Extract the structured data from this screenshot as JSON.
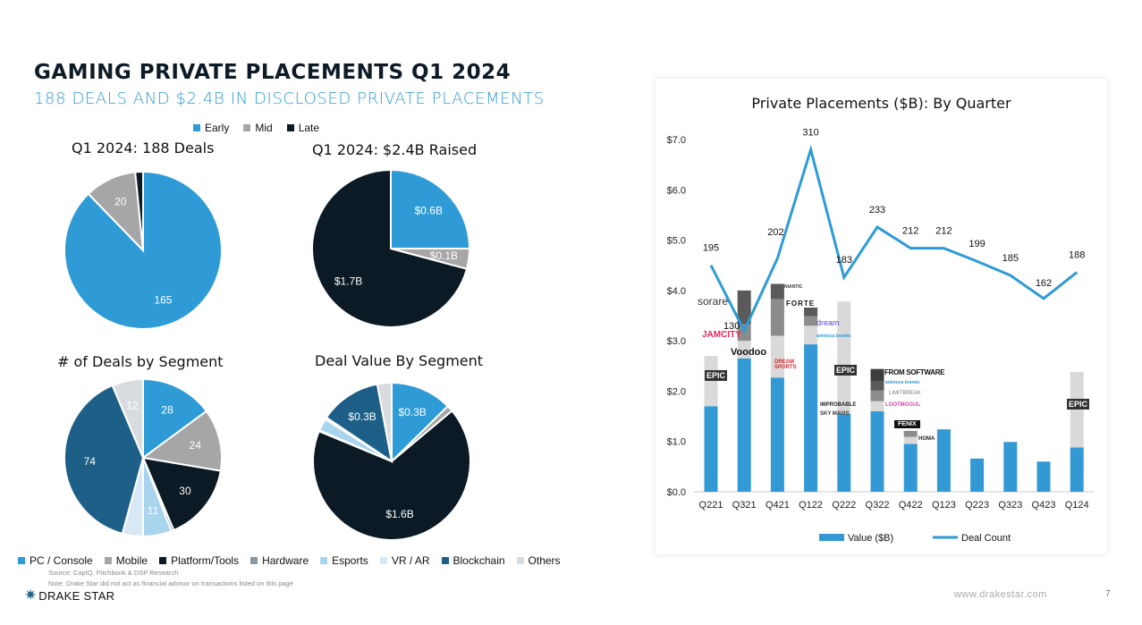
{
  "header": {
    "title": "GAMING PRIVATE PLACEMENTS Q1 2024",
    "subtitle": "188 DEALS AND $2.4B IN DISCLOSED PRIVATE PLACEMENTS"
  },
  "stage_legend": [
    {
      "label": "Early",
      "color": "#2e9bd6"
    },
    {
      "label": "Mid",
      "color": "#a6a6a6"
    },
    {
      "label": "Late",
      "color": "#0b1a24"
    }
  ],
  "segment_legend": [
    {
      "label": "PC / Console",
      "color": "#2e9bd6"
    },
    {
      "label": "Mobile",
      "color": "#a6a6a6"
    },
    {
      "label": "Platform/Tools",
      "color": "#0b1a24"
    },
    {
      "label": "Hardware",
      "color": "#8c95a0"
    },
    {
      "label": "Esports",
      "color": "#a9d4ee"
    },
    {
      "label": "VR / AR",
      "color": "#d8e9f5"
    },
    {
      "label": "Blockchain",
      "color": "#1d5f86"
    },
    {
      "label": "Others",
      "color": "#d9dcdf"
    }
  ],
  "chart_data": [
    {
      "type": "pie",
      "title": "Q1 2024: 188 Deals",
      "categories": [
        "Early",
        "Mid",
        "Late"
      ],
      "values": [
        165,
        20,
        3
      ],
      "labels": [
        "165",
        "20",
        null
      ],
      "colors": [
        "#2e9bd6",
        "#a6a6a6",
        "#0b1a24"
      ]
    },
    {
      "type": "pie",
      "title": "Q1 2024: $2.4B Raised",
      "categories": [
        "Early",
        "Mid",
        "Late"
      ],
      "values": [
        0.6,
        0.1,
        1.7
      ],
      "labels": [
        "$0.6B",
        "$0.1B",
        "$1.7B"
      ],
      "colors": [
        "#2e9bd6",
        "#a6a6a6",
        "#0b1a24"
      ]
    },
    {
      "type": "pie",
      "title": "# of Deals by Segment",
      "categories": [
        "PC / Console",
        "Mobile",
        "Platform/Tools",
        "Hardware",
        "Esports",
        "VR / AR",
        "Blockchain",
        "Others"
      ],
      "values": [
        28,
        24,
        30,
        1,
        11,
        8,
        74,
        12
      ],
      "labels": [
        "28",
        "24",
        "30",
        null,
        "11",
        null,
        "74",
        "12"
      ],
      "colors": [
        "#2e9bd6",
        "#a6a6a6",
        "#0b1a24",
        "#8c95a0",
        "#a9d4ee",
        "#d8e9f5",
        "#1d5f86",
        "#d9dcdf"
      ]
    },
    {
      "type": "pie",
      "title": "Deal Value By Segment",
      "categories": [
        "PC / Console",
        "Mobile",
        "Platform/Tools",
        "Hardware",
        "Esports",
        "VR / AR",
        "Blockchain",
        "Others"
      ],
      "values": [
        0.3,
        0.03,
        1.6,
        0.005,
        0.06,
        0.01,
        0.3,
        0.07
      ],
      "labels": [
        "$0.3B",
        null,
        "$1.6B",
        null,
        null,
        null,
        "$0.3B",
        null
      ],
      "colors": [
        "#2e9bd6",
        "#a6a6a6",
        "#0b1a24",
        "#8c95a0",
        "#a9d4ee",
        "#e9b6d6",
        "#1d5f86",
        "#d9dcdf"
      ]
    },
    {
      "type": "bar",
      "title": "Private Placements ($B): By Quarter",
      "categories": [
        "Q221",
        "Q321",
        "Q421",
        "Q122",
        "Q222",
        "Q322",
        "Q422",
        "Q123",
        "Q223",
        "Q323",
        "Q423",
        "Q124"
      ],
      "stacked_values": [
        [
          1.7,
          1.0
        ],
        [
          2.65,
          0.35,
          0.33,
          0.67
        ],
        [
          2.27,
          0.83,
          0.73,
          0.3
        ],
        [
          2.93,
          0.37,
          0.19,
          0.17
        ],
        [
          1.55,
          2.23
        ],
        [
          1.6,
          0.2,
          0.21,
          0.18,
          0.25
        ],
        [
          0.95,
          0.14,
          0.12
        ],
        [
          1.24
        ],
        [
          0.66
        ],
        [
          0.99
        ],
        [
          0.6
        ],
        [
          0.88,
          1.5
        ]
      ],
      "stack_colors": [
        "#3399d4",
        "#d9d9d9",
        "#8c8c8c",
        "#5a5a5a",
        "#3d3d3d"
      ],
      "line": {
        "name": "Deal Count",
        "values": [
          195,
          130,
          202,
          310,
          183,
          233,
          212,
          212,
          199,
          185,
          162,
          188
        ],
        "color": "#2e9bd6"
      },
      "bar_series_name": "Value ($B)",
      "yticks": [
        "$0.0",
        "$1.0",
        "$2.0",
        "$3.0",
        "$4.0",
        "$5.0",
        "$6.0",
        "$7.0"
      ],
      "ylim": [
        0,
        7
      ],
      "grid": false,
      "legend": "bottom"
    }
  ],
  "logos": {
    "sorare": "sorare",
    "jamcity": "JAMCITY",
    "voodoo": "Voodoo",
    "niantic": "NIANTIC",
    "forte": "FORTE",
    "dream_sports": "DREAM SPORTS",
    "dream": "dream",
    "animoca": "animoca brands",
    "epic": "EPIC",
    "improbable": "IMPROBABLE",
    "skymavis": "SKY MAVIS",
    "fromsoftware": "FROM SOFTWARE",
    "animoca2": "animoca brands",
    "limitbreak": "LIMITBREAK",
    "lootmogul": "LOOTMOGUL",
    "fenix": "FENIX",
    "homa": "HOMA",
    "epic2": "EPIC",
    "epic3": "EPIC"
  },
  "footer": {
    "source": "Source: CapIQ, Pitchbook & DSP Research",
    "note": "Note: Drake Star did not act as financial advisor on transactions listed on this page",
    "brand": "DRAKE STAR",
    "website": "www.drakestar.com",
    "page": "7"
  }
}
